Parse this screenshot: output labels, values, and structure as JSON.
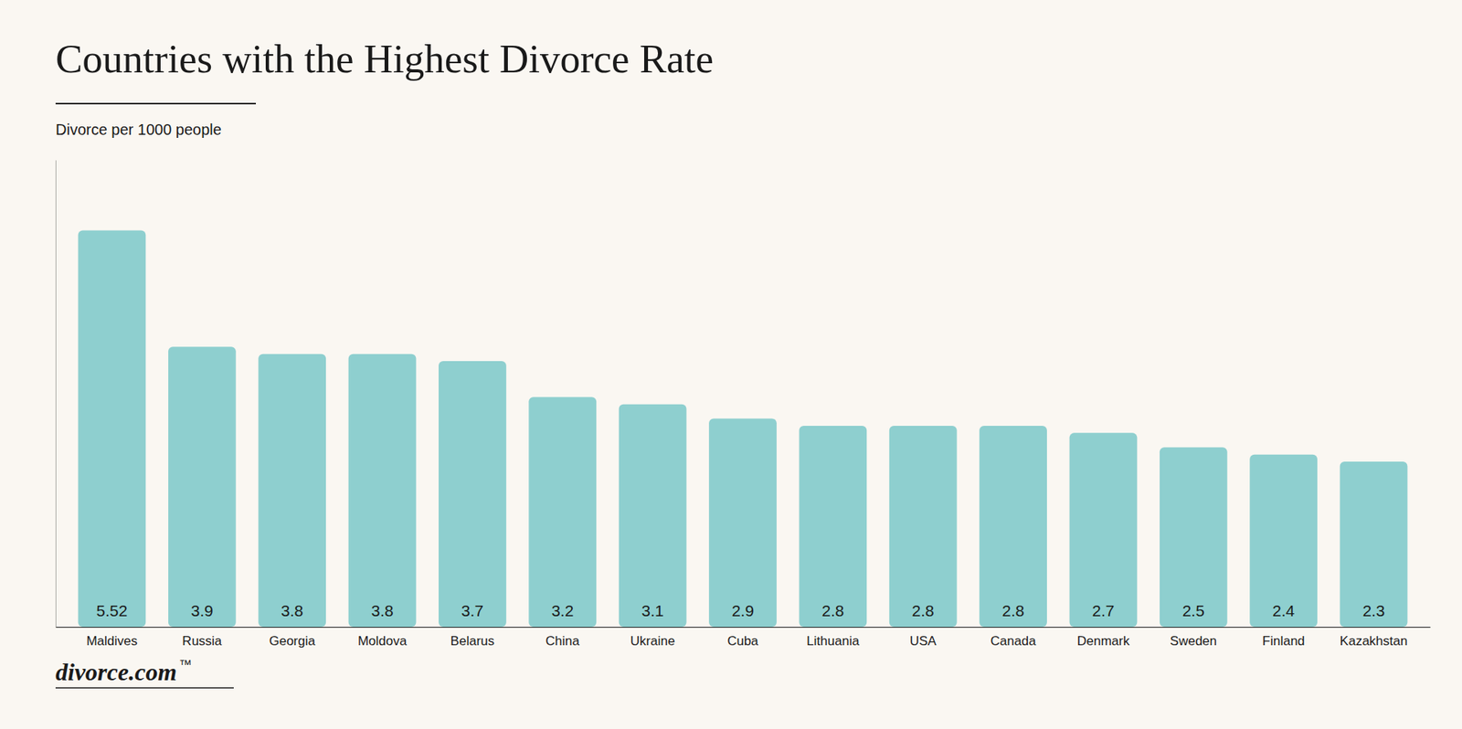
{
  "chart_data": {
    "type": "bar",
    "title": "Countries with the Highest Divorce Rate",
    "subtitle": "Divorce per 1000 people",
    "annotations": [
      "divorce.com",
      "™"
    ],
    "categories": [
      "Maldives",
      "Russia",
      "Georgia",
      "Moldova",
      "Belarus",
      "China",
      "Ukraine",
      "Cuba",
      "Lithuania",
      "USA",
      "Canada",
      "Denmark",
      "Sweden",
      "Finland",
      "Kazakhstan"
    ],
    "values": [
      5.52,
      3.9,
      3.8,
      3.8,
      3.7,
      3.2,
      3.1,
      2.9,
      2.8,
      2.8,
      2.8,
      2.7,
      2.5,
      2.4,
      2.3
    ],
    "color": "#8ECFCF",
    "ylim": [
      0,
      6.5
    ],
    "grid": false,
    "data_labels": true,
    "tick_labels": "x"
  }
}
